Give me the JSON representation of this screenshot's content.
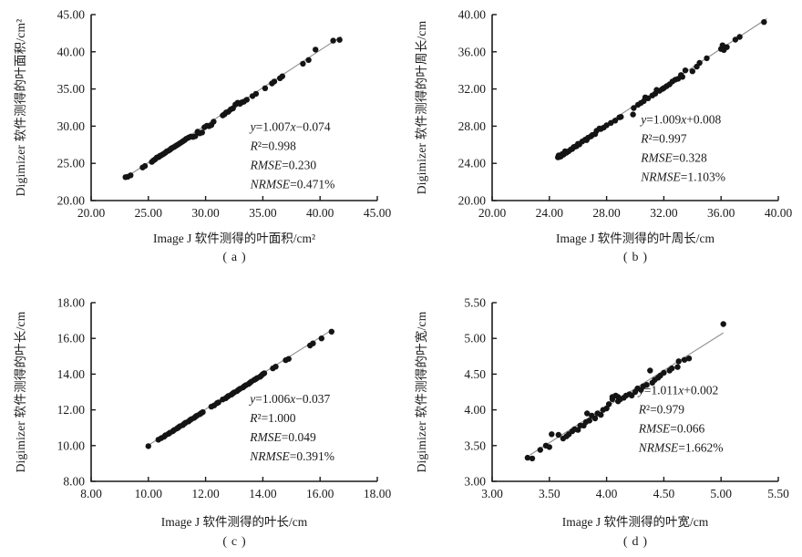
{
  "colors": {
    "point": "#141414",
    "fit_line": "#8f8f8f",
    "axis": "#1a1a1a",
    "text": "#1a1a1a",
    "background": "#ffffff"
  },
  "chart_data": [
    {
      "id": "a",
      "type": "scatter",
      "caption": "(a)",
      "xlabel": "Image J 软件测得的叶面积/cm²",
      "ylabel": "Digimizer 软件测得的叶面积/cm²",
      "xlim": [
        20,
        45
      ],
      "ylim": [
        20,
        45
      ],
      "xtick_labels": [
        "20.00",
        "25.00",
        "30.00",
        "35.00",
        "40.00",
        "45.00"
      ],
      "ytick_labels": [
        "20.00",
        "25.00",
        "30.00",
        "35.00",
        "40.00",
        "45.00"
      ],
      "annotation": [
        "y=1.007x−0.074",
        "R²=0.998",
        "RMSE=0.230",
        "NRMSE=0.471%"
      ],
      "annotation_anchor": [
        33.9,
        29.4
      ],
      "fit": {
        "slope": 1.007,
        "intercept": -0.074,
        "x1": 22.9,
        "x2": 41.85
      },
      "points": [
        [
          23.0,
          23.15
        ],
        [
          23.2,
          23.2
        ],
        [
          23.45,
          23.4
        ],
        [
          24.5,
          24.45
        ],
        [
          24.7,
          24.65
        ],
        [
          25.3,
          25.2
        ],
        [
          25.45,
          25.4
        ],
        [
          25.6,
          25.55
        ],
        [
          25.75,
          25.8
        ],
        [
          25.9,
          25.85
        ],
        [
          26.0,
          26.0
        ],
        [
          26.1,
          26.05
        ],
        [
          26.25,
          26.2
        ],
        [
          26.35,
          26.3
        ],
        [
          26.5,
          26.45
        ],
        [
          26.6,
          26.6
        ],
        [
          26.75,
          26.7
        ],
        [
          26.9,
          26.85
        ],
        [
          27.0,
          27.0
        ],
        [
          27.1,
          27.1
        ],
        [
          27.25,
          27.2
        ],
        [
          27.4,
          27.35
        ],
        [
          27.55,
          27.5
        ],
        [
          27.7,
          27.65
        ],
        [
          27.85,
          27.8
        ],
        [
          28.0,
          27.95
        ],
        [
          28.15,
          28.1
        ],
        [
          28.3,
          28.3
        ],
        [
          28.5,
          28.45
        ],
        [
          28.7,
          28.6
        ],
        [
          28.9,
          28.55
        ],
        [
          29.1,
          28.65
        ],
        [
          29.3,
          29.25
        ],
        [
          29.5,
          29.05
        ],
        [
          29.7,
          29.15
        ],
        [
          29.9,
          29.85
        ],
        [
          30.1,
          30.05
        ],
        [
          30.3,
          30.0
        ],
        [
          30.5,
          30.15
        ],
        [
          30.7,
          30.6
        ],
        [
          31.5,
          31.45
        ],
        [
          31.65,
          31.6
        ],
        [
          31.8,
          31.85
        ],
        [
          32.0,
          31.95
        ],
        [
          32.2,
          32.25
        ],
        [
          32.4,
          32.4
        ],
        [
          32.6,
          32.9
        ],
        [
          32.8,
          33.15
        ],
        [
          33.0,
          33.0
        ],
        [
          33.15,
          33.2
        ],
        [
          33.35,
          33.3
        ],
        [
          33.6,
          33.55
        ],
        [
          34.1,
          34.05
        ],
        [
          34.4,
          34.35
        ],
        [
          35.2,
          35.1
        ],
        [
          35.8,
          35.75
        ],
        [
          36.0,
          36.0
        ],
        [
          36.5,
          36.45
        ],
        [
          36.7,
          36.7
        ],
        [
          38.5,
          38.4
        ],
        [
          39.0,
          38.9
        ],
        [
          39.6,
          40.3
        ],
        [
          41.15,
          41.5
        ],
        [
          41.7,
          41.6
        ]
      ]
    },
    {
      "id": "b",
      "type": "scatter",
      "caption": "(b)",
      "xlabel": "Image J 软件测得的叶周长/cm",
      "ylabel": "Digimizer 软件测得的叶周长/cm",
      "xlim": [
        20,
        40
      ],
      "ylim": [
        20,
        40
      ],
      "xtick_labels": [
        "20.00",
        "24.00",
        "28.00",
        "32.00",
        "36.00",
        "40.00"
      ],
      "ytick_labels": [
        "20.00",
        "24.00",
        "28.00",
        "32.00",
        "36.00",
        "40.00"
      ],
      "annotation": [
        "y=1.009x+0.008",
        "R²=0.997",
        "RMSE=0.328",
        "NRMSE=1.103%"
      ],
      "annotation_anchor": [
        30.4,
        28.3
      ],
      "fit": {
        "slope": 1.009,
        "intercept": 0.008,
        "x1": 24.4,
        "x2": 39.2
      },
      "points": [
        [
          24.6,
          24.65
        ],
        [
          24.65,
          24.85
        ],
        [
          24.7,
          24.7
        ],
        [
          24.8,
          24.75
        ],
        [
          24.9,
          25.0
        ],
        [
          25.0,
          24.95
        ],
        [
          25.1,
          25.3
        ],
        [
          25.2,
          25.15
        ],
        [
          25.35,
          25.3
        ],
        [
          25.5,
          25.5
        ],
        [
          25.6,
          25.55
        ],
        [
          25.7,
          25.75
        ],
        [
          25.8,
          25.8
        ],
        [
          25.9,
          25.85
        ],
        [
          26.0,
          26.1
        ],
        [
          26.1,
          26.05
        ],
        [
          26.3,
          26.35
        ],
        [
          26.5,
          26.55
        ],
        [
          26.6,
          26.5
        ],
        [
          26.7,
          26.75
        ],
        [
          26.9,
          26.9
        ],
        [
          27.0,
          27.05
        ],
        [
          27.2,
          27.15
        ],
        [
          27.3,
          27.5
        ],
        [
          27.5,
          27.75
        ],
        [
          27.6,
          27.7
        ],
        [
          27.8,
          27.85
        ],
        [
          28.0,
          28.1
        ],
        [
          28.3,
          28.35
        ],
        [
          28.6,
          28.6
        ],
        [
          28.9,
          28.95
        ],
        [
          29.0,
          29.0
        ],
        [
          29.85,
          29.25
        ],
        [
          29.9,
          29.95
        ],
        [
          30.2,
          30.3
        ],
        [
          30.4,
          30.5
        ],
        [
          30.6,
          30.7
        ],
        [
          30.7,
          31.1
        ],
        [
          30.9,
          31.0
        ],
        [
          31.2,
          31.3
        ],
        [
          31.4,
          31.5
        ],
        [
          31.5,
          31.9
        ],
        [
          31.7,
          31.8
        ],
        [
          31.9,
          32.0
        ],
        [
          32.0,
          32.1
        ],
        [
          32.2,
          32.3
        ],
        [
          32.4,
          32.5
        ],
        [
          32.6,
          32.8
        ],
        [
          32.8,
          33.0
        ],
        [
          33.0,
          33.1
        ],
        [
          33.2,
          33.5
        ],
        [
          33.3,
          33.3
        ],
        [
          33.5,
          34.0
        ],
        [
          34.0,
          33.9
        ],
        [
          34.3,
          34.4
        ],
        [
          34.5,
          34.8
        ],
        [
          35.0,
          35.3
        ],
        [
          36.0,
          36.3
        ],
        [
          36.1,
          36.7
        ],
        [
          36.2,
          36.2
        ],
        [
          36.4,
          36.5
        ],
        [
          37.0,
          37.3
        ],
        [
          37.3,
          37.6
        ],
        [
          39.0,
          39.2
        ]
      ]
    },
    {
      "id": "c",
      "type": "scatter",
      "caption": "(c)",
      "xlabel": "Image J 软件测得的叶长/cm",
      "ylabel": "Digimizer 软件测得的叶长/cm",
      "xlim": [
        8,
        18
      ],
      "ylim": [
        8,
        18
      ],
      "xtick_labels": [
        "8.00",
        "10.00",
        "12.00",
        "14.00",
        "16.00",
        "18.00"
      ],
      "ytick_labels": [
        "8.00",
        "10.00",
        "12.00",
        "14.00",
        "16.00",
        "18.00"
      ],
      "annotation": [
        "y=1.006x−0.037",
        "R²=1.000",
        "RMSE=0.049",
        "NRMSE=0.391%"
      ],
      "annotation_anchor": [
        13.55,
        12.4
      ],
      "fit": {
        "slope": 1.006,
        "intercept": -0.037,
        "x1": 9.9,
        "x2": 16.45
      },
      "points": [
        [
          10.0,
          9.97
        ],
        [
          10.35,
          10.33
        ],
        [
          10.45,
          10.42
        ],
        [
          10.55,
          10.5
        ],
        [
          10.6,
          10.58
        ],
        [
          10.7,
          10.66
        ],
        [
          10.75,
          10.72
        ],
        [
          10.85,
          10.8
        ],
        [
          10.9,
          10.87
        ],
        [
          11.0,
          10.96
        ],
        [
          11.05,
          11.02
        ],
        [
          11.1,
          11.08
        ],
        [
          11.2,
          11.15
        ],
        [
          11.25,
          11.22
        ],
        [
          11.3,
          11.28
        ],
        [
          11.4,
          11.35
        ],
        [
          11.45,
          11.42
        ],
        [
          11.5,
          11.48
        ],
        [
          11.6,
          11.55
        ],
        [
          11.65,
          11.62
        ],
        [
          11.7,
          11.68
        ],
        [
          11.8,
          11.76
        ],
        [
          11.85,
          11.82
        ],
        [
          11.9,
          11.87
        ],
        [
          12.2,
          12.18
        ],
        [
          12.3,
          12.25
        ],
        [
          12.4,
          12.38
        ],
        [
          12.45,
          12.42
        ],
        [
          12.6,
          12.58
        ],
        [
          12.7,
          12.65
        ],
        [
          12.75,
          12.72
        ],
        [
          12.8,
          12.78
        ],
        [
          12.9,
          12.85
        ],
        [
          12.95,
          12.92
        ],
        [
          13.0,
          12.98
        ],
        [
          13.1,
          13.05
        ],
        [
          13.15,
          13.12
        ],
        [
          13.2,
          13.18
        ],
        [
          13.3,
          13.25
        ],
        [
          13.35,
          13.32
        ],
        [
          13.4,
          13.38
        ],
        [
          13.5,
          13.45
        ],
        [
          13.55,
          13.52
        ],
        [
          13.6,
          13.58
        ],
        [
          13.7,
          13.68
        ],
        [
          13.75,
          13.72
        ],
        [
          13.8,
          13.78
        ],
        [
          13.9,
          13.85
        ],
        [
          13.95,
          13.92
        ],
        [
          14.0,
          14.0
        ],
        [
          14.05,
          14.05
        ],
        [
          14.35,
          14.32
        ],
        [
          14.45,
          14.42
        ],
        [
          14.8,
          14.78
        ],
        [
          14.9,
          14.85
        ],
        [
          15.65,
          15.6
        ],
        [
          15.75,
          15.72
        ],
        [
          16.05,
          16.0
        ],
        [
          16.4,
          16.38
        ]
      ]
    },
    {
      "id": "d",
      "type": "scatter",
      "caption": "(d)",
      "xlabel": "Image J 软件测得的叶宽/cm",
      "ylabel": "Digimizer 软件测得的叶宽/cm",
      "xlim": [
        3.0,
        5.5
      ],
      "ylim": [
        3.0,
        5.5
      ],
      "xtick_labels": [
        "3.00",
        "3.50",
        "4.00",
        "4.50",
        "5.00",
        "5.50"
      ],
      "ytick_labels": [
        "3.00",
        "3.50",
        "4.00",
        "4.50",
        "5.00",
        "5.50"
      ],
      "annotation": [
        "y=1.011x+0.002",
        "R²=0.979",
        "RMSE=0.066",
        "NRMSE=1.662%"
      ],
      "annotation_anchor": [
        4.28,
        4.22
      ],
      "fit": {
        "slope": 1.011,
        "intercept": 0.002,
        "x1": 3.33,
        "x2": 5.02
      },
      "points": [
        [
          3.31,
          3.33
        ],
        [
          3.35,
          3.32
        ],
        [
          3.42,
          3.44
        ],
        [
          3.47,
          3.5
        ],
        [
          3.5,
          3.48
        ],
        [
          3.52,
          3.66
        ],
        [
          3.58,
          3.65
        ],
        [
          3.62,
          3.6
        ],
        [
          3.65,
          3.63
        ],
        [
          3.67,
          3.66
        ],
        [
          3.7,
          3.7
        ],
        [
          3.72,
          3.73
        ],
        [
          3.75,
          3.72
        ],
        [
          3.77,
          3.78
        ],
        [
          3.8,
          3.78
        ],
        [
          3.82,
          3.83
        ],
        [
          3.83,
          3.95
        ],
        [
          3.85,
          3.85
        ],
        [
          3.87,
          3.92
        ],
        [
          3.9,
          3.88
        ],
        [
          3.92,
          3.95
        ],
        [
          3.95,
          3.93
        ],
        [
          3.97,
          4.0
        ],
        [
          4.0,
          4.02
        ],
        [
          4.02,
          4.08
        ],
        [
          4.05,
          4.15
        ],
        [
          4.05,
          4.18
        ],
        [
          4.08,
          4.2
        ],
        [
          4.1,
          4.12
        ],
        [
          4.1,
          4.18
        ],
        [
          4.12,
          4.15
        ],
        [
          4.15,
          4.17
        ],
        [
          4.17,
          4.2
        ],
        [
          4.2,
          4.22
        ],
        [
          4.22,
          4.2
        ],
        [
          4.25,
          4.25
        ],
        [
          4.27,
          4.3
        ],
        [
          4.3,
          4.28
        ],
        [
          4.32,
          4.33
        ],
        [
          4.35,
          4.35
        ],
        [
          4.38,
          4.55
        ],
        [
          4.4,
          4.38
        ],
        [
          4.42,
          4.42
        ],
        [
          4.45,
          4.45
        ],
        [
          4.47,
          4.48
        ],
        [
          4.5,
          4.52
        ],
        [
          4.55,
          4.55
        ],
        [
          4.57,
          4.58
        ],
        [
          4.62,
          4.6
        ],
        [
          4.63,
          4.68
        ],
        [
          4.68,
          4.7
        ],
        [
          4.72,
          4.72
        ],
        [
          5.02,
          5.2
        ]
      ]
    }
  ]
}
